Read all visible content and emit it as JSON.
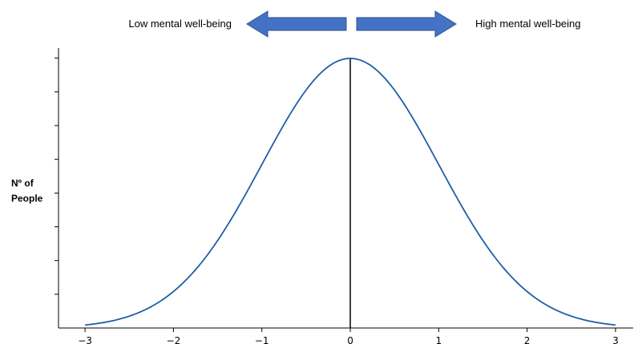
{
  "header": {
    "low_label": "Low mental well-being",
    "high_label": "High mental well-being"
  },
  "ylabel_lines": [
    "Nº of",
    "People"
  ],
  "colors": {
    "curve": "#1f5fa8",
    "arrow_fill": "#4472c4",
    "arrow_stroke": "#2f528f",
    "axis": "#000000"
  },
  "chart_data": {
    "type": "line",
    "title": "",
    "xlabel": "",
    "ylabel": "Nº of People",
    "xlim": [
      -3.3,
      3.2
    ],
    "xticks": [
      -3,
      -2,
      -1,
      0,
      1,
      2,
      3
    ],
    "xtick_labels": [
      "−3",
      "−2",
      "−1",
      "0",
      "1",
      "2",
      "3"
    ],
    "y_tick_count": 8,
    "y_tick_labels": [],
    "curve": "normal distribution (mean 0, sd 1)",
    "x_range": [
      -3,
      3
    ],
    "peak": {
      "x": 0,
      "y": 1
    },
    "vertical_line_x": 0,
    "grid": false,
    "legend": "none"
  }
}
